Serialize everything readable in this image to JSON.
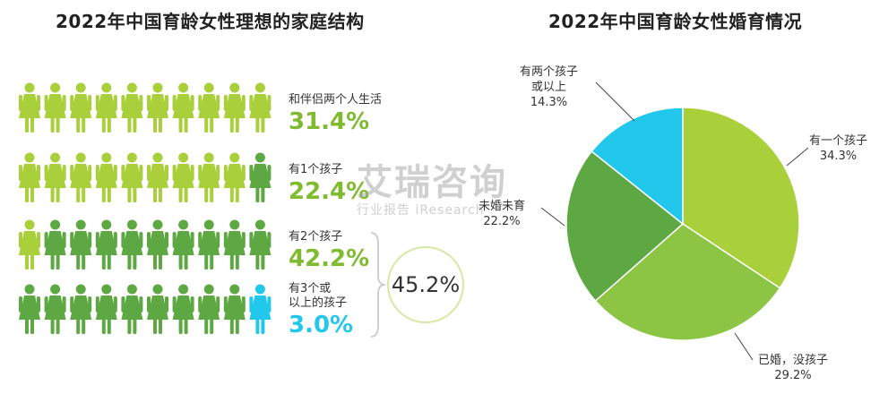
{
  "left_title": "2022年中国育龄女性理想的家庭结构",
  "right_title": "2022年中国育龄女性婚育情况",
  "colors": {
    "light_green": "#a9cf3b",
    "dark_green": "#5ea843",
    "cyan": "#22c7ec",
    "mid_green": "#8cc544",
    "pct_green": "#7fba2f",
    "pct_cyan": "#22c7ec"
  },
  "figure_rows": [
    {
      "label_lines": [
        "和伴侣两个人生活"
      ],
      "percent": "31.4%",
      "light": 10,
      "dark": 0,
      "cyan": 0,
      "pct_color": "pct_green"
    },
    {
      "label_lines": [
        "有1个孩子"
      ],
      "percent": "22.4%",
      "light": 9,
      "dark": 1,
      "cyan": 0,
      "pct_color": "pct_green"
    },
    {
      "label_lines": [
        "有2个孩子"
      ],
      "percent": "42.2%",
      "light": 1,
      "dark": 9,
      "cyan": 0,
      "pct_color": "pct_green"
    },
    {
      "label_lines": [
        "有3个或",
        "以上的孩子"
      ],
      "percent": "3.0%",
      "light": 0,
      "dark": 9,
      "cyan": 1,
      "pct_color": "pct_cyan"
    }
  ],
  "combined_percent": "45.2%",
  "watermark": {
    "main": "艾瑞咨询",
    "sub": "行业报告 iResearch"
  },
  "chart_data": {
    "type": "pie",
    "title": "2022年中国育龄女性婚育情况",
    "slices": [
      {
        "label": "有一个孩子",
        "value": 34.3,
        "value_text": "34.3%",
        "color": "#a9cf3b"
      },
      {
        "label": "已婚，没孩子",
        "value": 29.2,
        "value_text": "29.2%",
        "color": "#8cc544"
      },
      {
        "label": "未婚未育",
        "value": 22.2,
        "value_text": "22.2%",
        "color": "#5ea843"
      },
      {
        "label": "有两个孩子或以上",
        "value": 14.3,
        "value_text": "14.3%",
        "color": "#22c7ec"
      }
    ]
  }
}
